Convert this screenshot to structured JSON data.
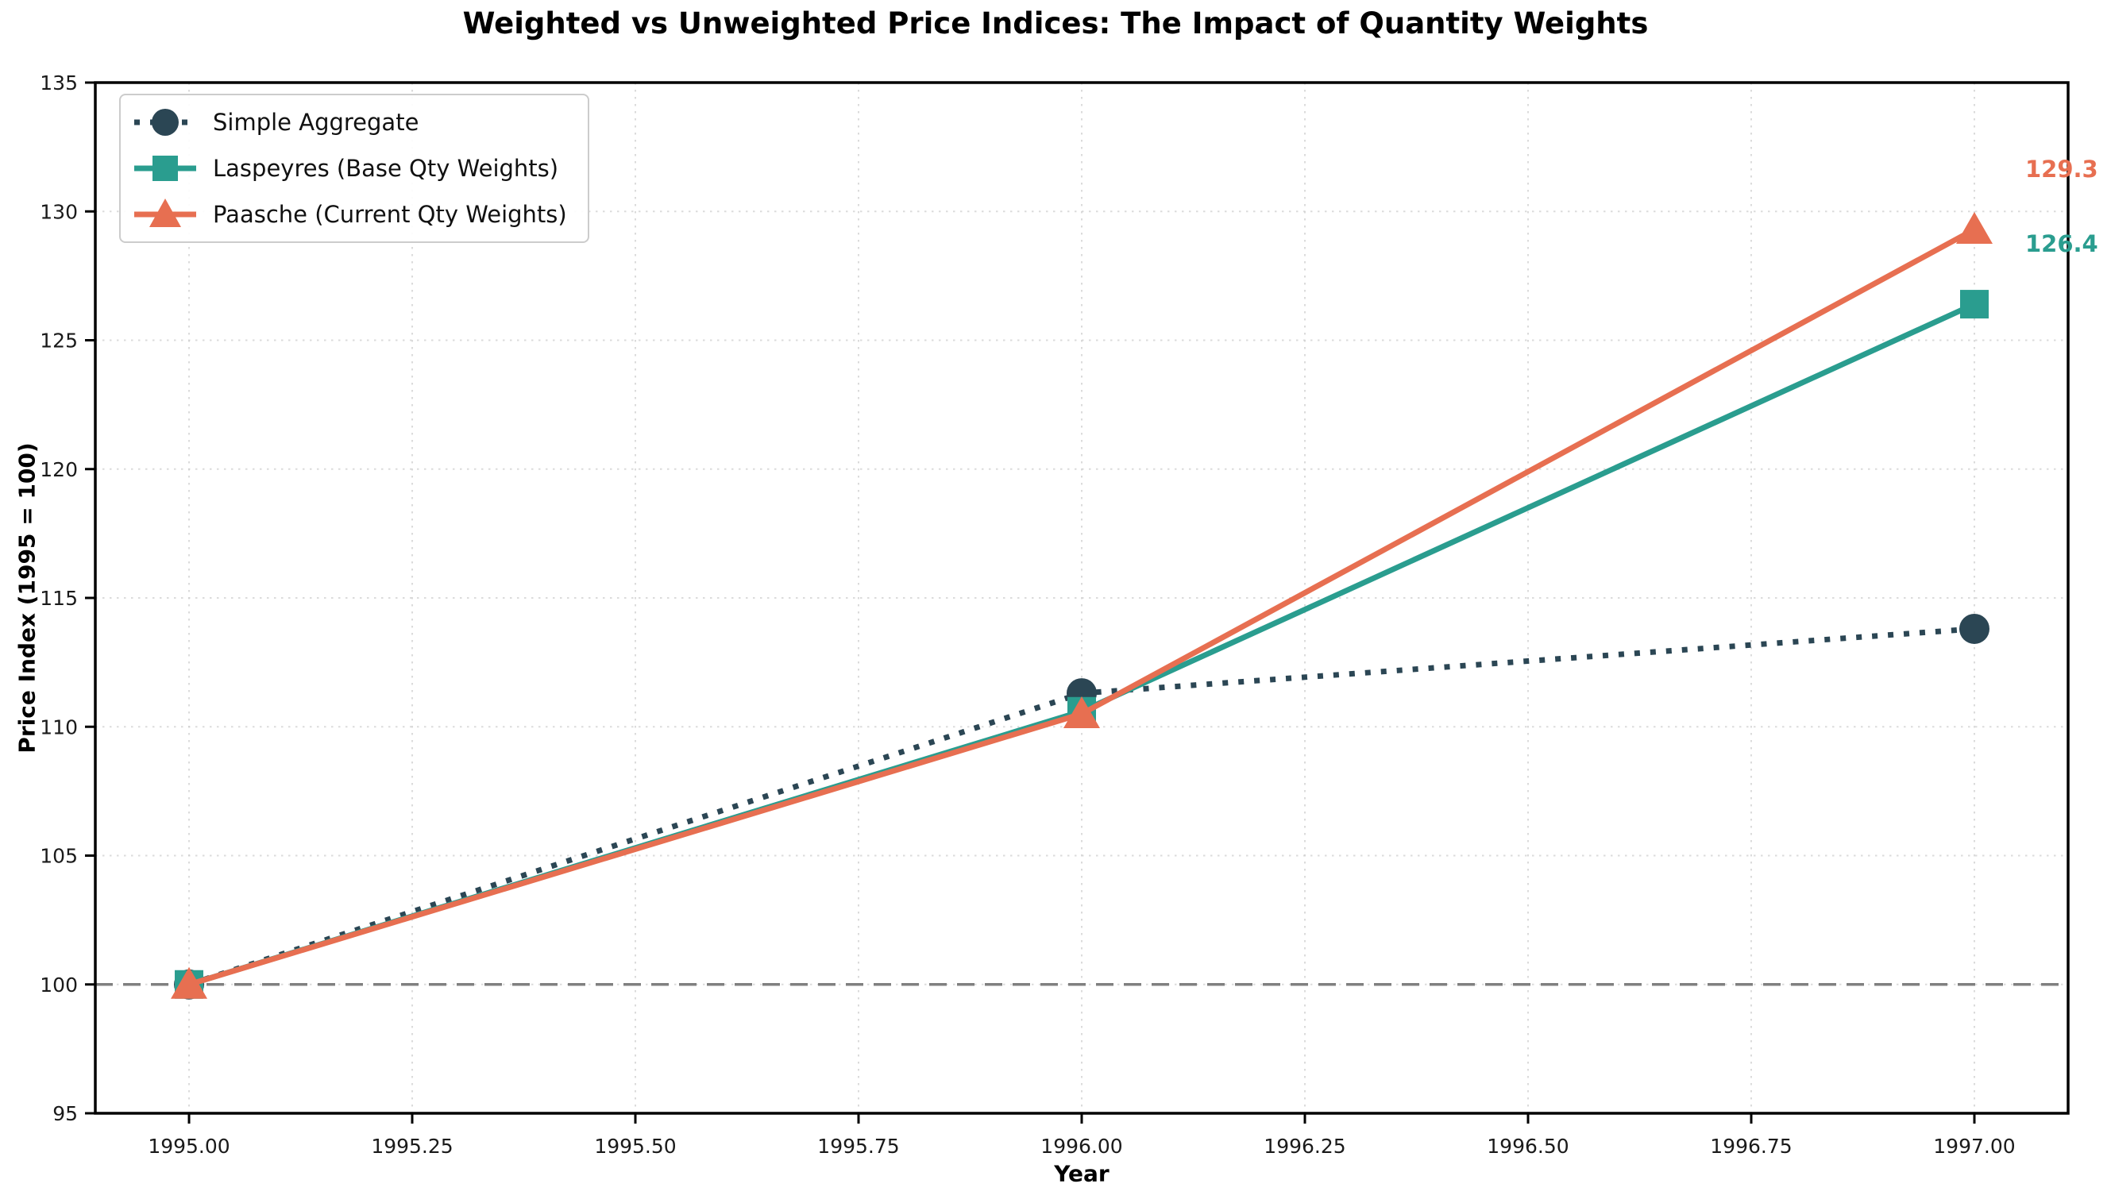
{
  "chart_data": {
    "type": "line",
    "title": "Weighted vs Unweighted Price Indices: The Impact of Quantity Weights",
    "xlabel": "Year",
    "ylabel": "Price Index (1995 = 100)",
    "xlim": [
      1994.895,
      1997.105
    ],
    "ylim": [
      95,
      135
    ],
    "grid": "dotted",
    "legend_position": "upper-left",
    "x_ticks": [
      {
        "value": 1995.0,
        "label": "1995.00"
      },
      {
        "value": 1995.25,
        "label": "1995.25"
      },
      {
        "value": 1995.5,
        "label": "1995.50"
      },
      {
        "value": 1995.75,
        "label": "1995.75"
      },
      {
        "value": 1996.0,
        "label": "1996.00"
      },
      {
        "value": 1996.25,
        "label": "1996.25"
      },
      {
        "value": 1996.5,
        "label": "1996.50"
      },
      {
        "value": 1996.75,
        "label": "1996.75"
      },
      {
        "value": 1997.0,
        "label": "1997.00"
      }
    ],
    "y_ticks": [
      {
        "value": 95,
        "label": "95"
      },
      {
        "value": 100,
        "label": "100"
      },
      {
        "value": 105,
        "label": "105"
      },
      {
        "value": 110,
        "label": "110"
      },
      {
        "value": 115,
        "label": "115"
      },
      {
        "value": 120,
        "label": "120"
      },
      {
        "value": 125,
        "label": "125"
      },
      {
        "value": 130,
        "label": "130"
      },
      {
        "value": 135,
        "label": "135"
      }
    ],
    "baseline": {
      "value": 100,
      "style": "dashed",
      "color": "#808080"
    },
    "x": [
      1995,
      1996,
      1997
    ],
    "series": [
      {
        "name": "simple-aggregate",
        "label": "Simple Aggregate",
        "values": [
          100,
          111.3,
          113.8
        ],
        "color": "#2b4654",
        "line_style": "dotted",
        "marker": "circle"
      },
      {
        "name": "laspeyres",
        "label": "Laspeyres (Base Qty Weights)",
        "values": [
          100,
          110.6,
          126.4
        ],
        "color": "#2a9d8f",
        "line_style": "solid",
        "marker": "square"
      },
      {
        "name": "paasche",
        "label": "Paasche (Current Qty Weights)",
        "values": [
          100,
          110.5,
          129.3
        ],
        "color": "#e76f51",
        "line_style": "solid",
        "marker": "triangle"
      }
    ],
    "annotations": [
      {
        "text": "129.3",
        "x": 1997,
        "y": 129.3,
        "color": "#e76f51"
      },
      {
        "text": "126.4",
        "x": 1997,
        "y": 126.4,
        "color": "#2a9d8f"
      }
    ]
  }
}
